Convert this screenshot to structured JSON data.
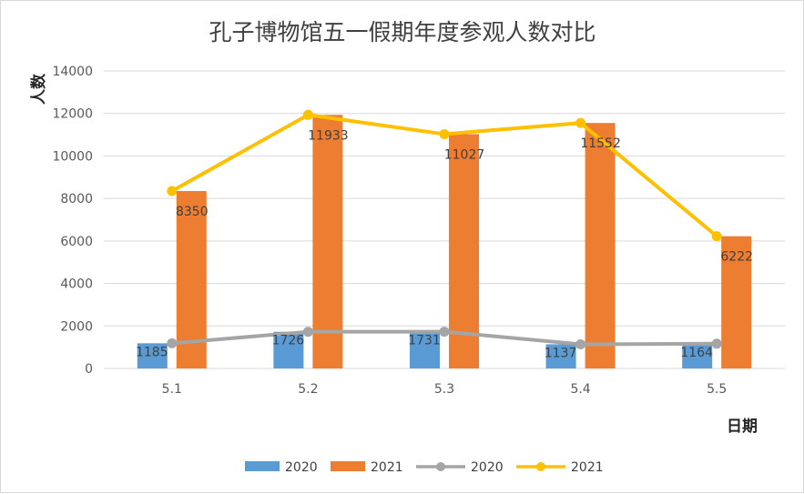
{
  "chart_data": {
    "type": "bar",
    "title": "孔子博物馆五一假期年度参观人数对比",
    "xlabel": "日期",
    "ylabel": "人数",
    "categories": [
      "5.1",
      "5.2",
      "5.3",
      "5.4",
      "5.5"
    ],
    "ylim": [
      0,
      14000
    ],
    "yticks": [
      0,
      2000,
      4000,
      6000,
      8000,
      10000,
      12000,
      14000
    ],
    "grid": true,
    "legend_position": "bottom",
    "series": [
      {
        "name": "2020",
        "type": "bar",
        "color": "#5b9bd5",
        "values": [
          1185,
          1726,
          1731,
          1137,
          1164
        ]
      },
      {
        "name": "2021",
        "type": "bar",
        "color": "#ed7d31",
        "values": [
          8350,
          11933,
          11027,
          11552,
          6222
        ]
      },
      {
        "name": "2020",
        "type": "line",
        "color": "#a5a5a5",
        "values": [
          1185,
          1726,
          1731,
          1137,
          1164
        ]
      },
      {
        "name": "2021",
        "type": "line",
        "color": "#ffc000",
        "values": [
          8350,
          11933,
          11027,
          11552,
          6222
        ]
      }
    ],
    "data_labels": {
      "2020": [
        "1185",
        "1726",
        "1731",
        "1137",
        "1164"
      ],
      "2021": [
        "8350",
        "11933",
        "11027",
        "11552",
        "6222"
      ]
    }
  }
}
